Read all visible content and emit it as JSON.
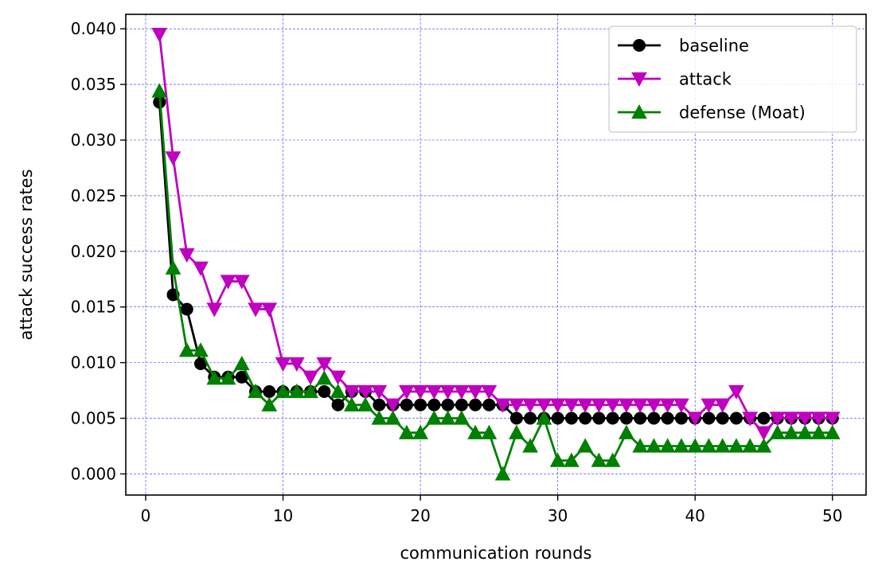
{
  "chart_data": {
    "type": "line",
    "title": "",
    "xlabel": "communication rounds",
    "ylabel": "attack success rates",
    "xlim": [
      -1.45,
      52.45
    ],
    "ylim": [
      -0.0019,
      0.0413
    ],
    "xticks": [
      0,
      10,
      20,
      30,
      40,
      50
    ],
    "xtick_labels": [
      "0",
      "10",
      "20",
      "30",
      "40",
      "50"
    ],
    "yticks": [
      0.0,
      0.005,
      0.01,
      0.015,
      0.02,
      0.025,
      0.03,
      0.035,
      0.04
    ],
    "ytick_labels": [
      "0.000",
      "0.005",
      "0.010",
      "0.015",
      "0.020",
      "0.025",
      "0.030",
      "0.035",
      "0.040"
    ],
    "grid": true,
    "grid_color": "#3333ff",
    "legend_position": "top-right",
    "x": [
      1,
      2,
      3,
      4,
      5,
      6,
      7,
      8,
      9,
      10,
      11,
      12,
      13,
      14,
      15,
      16,
      17,
      18,
      19,
      20,
      21,
      22,
      23,
      24,
      25,
      26,
      27,
      28,
      29,
      30,
      31,
      32,
      33,
      34,
      35,
      36,
      37,
      38,
      39,
      40,
      41,
      42,
      43,
      44,
      45,
      46,
      47,
      48,
      49,
      50
    ],
    "series": [
      {
        "name": "baseline",
        "color": "#000000",
        "marker": "circle",
        "values": [
          0.0334,
          0.0161,
          0.0148,
          0.0099,
          0.0087,
          0.0087,
          0.0087,
          0.0074,
          0.0074,
          0.0074,
          0.0074,
          0.0074,
          0.0074,
          0.0062,
          0.0074,
          0.0074,
          0.0062,
          0.0062,
          0.0062,
          0.0062,
          0.0062,
          0.0062,
          0.0062,
          0.0062,
          0.0062,
          0.0062,
          0.005,
          0.005,
          0.005,
          0.005,
          0.005,
          0.005,
          0.005,
          0.005,
          0.005,
          0.005,
          0.005,
          0.005,
          0.005,
          0.005,
          0.005,
          0.005,
          0.005,
          0.005,
          0.005,
          0.005,
          0.005,
          0.005,
          0.005,
          0.005
        ]
      },
      {
        "name": "attack",
        "color": "#bf00bf",
        "marker": "triangle-down",
        "values": [
          0.0395,
          0.0284,
          0.0197,
          0.0185,
          0.0148,
          0.0173,
          0.0173,
          0.0148,
          0.0148,
          0.0099,
          0.0099,
          0.0087,
          0.0099,
          0.0087,
          0.0074,
          0.0074,
          0.0074,
          0.0062,
          0.0074,
          0.0074,
          0.0074,
          0.0074,
          0.0074,
          0.0074,
          0.0074,
          0.0062,
          0.0062,
          0.0062,
          0.0062,
          0.0062,
          0.0062,
          0.0062,
          0.0062,
          0.0062,
          0.0062,
          0.0062,
          0.0062,
          0.0062,
          0.0062,
          0.005,
          0.0062,
          0.0062,
          0.0074,
          0.005,
          0.0037,
          0.005,
          0.005,
          0.005,
          0.005,
          0.005
        ]
      },
      {
        "name": "defense (Moat)",
        "color": "#008000",
        "marker": "triangle-up",
        "values": [
          0.0344,
          0.0185,
          0.0111,
          0.0111,
          0.0086,
          0.0086,
          0.0099,
          0.0074,
          0.0062,
          0.0074,
          0.0074,
          0.0074,
          0.0086,
          0.0074,
          0.0062,
          0.0062,
          0.005,
          0.005,
          0.0037,
          0.0037,
          0.005,
          0.005,
          0.005,
          0.0037,
          0.0037,
          0.0,
          0.0037,
          0.0025,
          0.005,
          0.0012,
          0.0012,
          0.0025,
          0.0012,
          0.0012,
          0.0037,
          0.0025,
          0.0025,
          0.0025,
          0.0025,
          0.0025,
          0.0025,
          0.0025,
          0.0025,
          0.0025,
          0.0025,
          0.0037,
          0.0037,
          0.0037,
          0.0037,
          0.0037
        ]
      }
    ]
  }
}
